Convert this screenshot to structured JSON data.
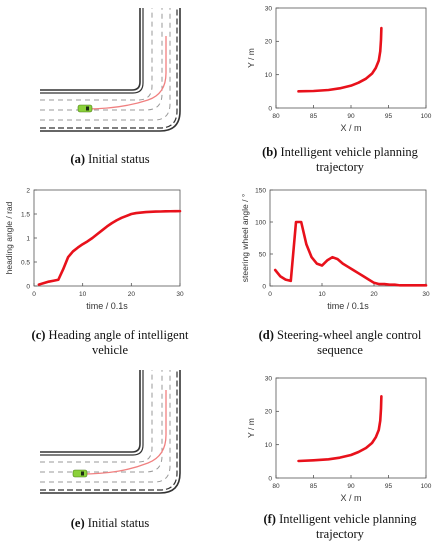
{
  "figure": {
    "panels": [
      {
        "id": "a",
        "letter": "(a)",
        "caption": "Initial status"
      },
      {
        "id": "b",
        "letter": "(b)",
        "caption": "Intelligent vehicle planning trajectory",
        "caption_line1": "Intelligent vehicle planning",
        "caption_line2": "trajectory"
      },
      {
        "id": "c",
        "letter": "(c)",
        "caption": "Heading angle of intelligent vehicle",
        "caption_line1": "Heading angle of intelligent",
        "caption_line2": "vehicle"
      },
      {
        "id": "d",
        "letter": "(d)",
        "caption": "Steering-wheel angle control sequence",
        "caption_line1": "Steering-wheel angle control",
        "caption_line2": "sequence"
      },
      {
        "id": "e",
        "letter": "(e)",
        "caption": "Initial status"
      },
      {
        "id": "f",
        "letter": "(f)",
        "caption": "Intelligent vehicle planning trajectory",
        "caption_line1": "Intelligent vehicle planning",
        "caption_line2": "trajectory"
      }
    ]
  },
  "colors": {
    "curve": "#e8111b",
    "axis": "#555555",
    "road_line": "#333333",
    "lane_dash": "#999999",
    "planned_path": "#f08080",
    "car": "#8bd13a"
  },
  "chart_data": [
    {
      "id": "b",
      "type": "line",
      "xlabel": "X / m",
      "ylabel": "Y / m",
      "xlim": [
        80,
        100
      ],
      "ylim": [
        0,
        30
      ],
      "xticks": [
        80,
        85,
        90,
        95,
        100
      ],
      "yticks": [
        0,
        10,
        20,
        30
      ],
      "x": [
        83,
        85,
        87,
        88.5,
        90,
        91,
        92,
        92.8,
        93.3,
        93.7,
        93.9,
        94,
        94.05
      ],
      "y": [
        5,
        5.1,
        5.4,
        5.9,
        6.7,
        7.6,
        8.8,
        10.3,
        12,
        14.2,
        17,
        20.5,
        24
      ]
    },
    {
      "id": "c",
      "type": "line",
      "xlabel": "time / 0.1s",
      "ylabel": "heading angle / rad",
      "xlim": [
        0,
        30
      ],
      "ylim": [
        0,
        2
      ],
      "xticks": [
        0,
        10,
        20,
        30
      ],
      "yticks": [
        0,
        0.5,
        1,
        1.5,
        2
      ],
      "x": [
        1,
        2,
        3,
        4,
        5,
        6,
        7,
        8,
        9,
        10,
        11,
        12,
        13,
        14,
        15,
        16,
        17,
        18,
        19,
        20,
        21,
        22,
        23,
        24,
        25,
        26,
        27,
        28,
        29,
        30
      ],
      "y": [
        0.03,
        0.06,
        0.09,
        0.11,
        0.13,
        0.35,
        0.6,
        0.72,
        0.8,
        0.87,
        0.93,
        1.0,
        1.08,
        1.16,
        1.24,
        1.31,
        1.37,
        1.42,
        1.46,
        1.5,
        1.52,
        1.53,
        1.54,
        1.545,
        1.55,
        1.552,
        1.555,
        1.557,
        1.558,
        1.56
      ]
    },
    {
      "id": "d",
      "type": "line",
      "xlabel": "time / 0.1s",
      "ylabel": "steering wheel angle / °",
      "xlim": [
        0,
        30
      ],
      "ylim": [
        0,
        150
      ],
      "xticks": [
        0,
        10,
        20,
        30
      ],
      "yticks": [
        0,
        50,
        100,
        150
      ],
      "x": [
        1,
        2,
        3,
        4,
        5,
        6,
        7,
        8,
        9,
        10,
        11,
        12,
        13,
        14,
        15,
        16,
        17,
        18,
        19,
        20,
        21,
        22,
        23,
        24,
        25,
        26,
        27,
        28,
        29,
        30
      ],
      "y": [
        25,
        15,
        10,
        8,
        100,
        100,
        65,
        45,
        35,
        32,
        40,
        45,
        42,
        35,
        30,
        25,
        20,
        15,
        10,
        5,
        3,
        3,
        2,
        2,
        1,
        1,
        1,
        1,
        1,
        1
      ]
    },
    {
      "id": "f",
      "type": "line",
      "xlabel": "X / m",
      "ylabel": "Y / m",
      "xlim": [
        80,
        100
      ],
      "ylim": [
        0,
        30
      ],
      "xticks": [
        80,
        85,
        90,
        95,
        100
      ],
      "yticks": [
        0,
        10,
        20,
        30
      ],
      "x": [
        83,
        85,
        87,
        88.5,
        90,
        91,
        92,
        92.8,
        93.3,
        93.7,
        93.9,
        94,
        94.05
      ],
      "y": [
        5.1,
        5.3,
        5.6,
        6.1,
        6.9,
        7.8,
        9,
        10.5,
        12.2,
        14.4,
        17.2,
        20.8,
        24.5
      ]
    }
  ]
}
